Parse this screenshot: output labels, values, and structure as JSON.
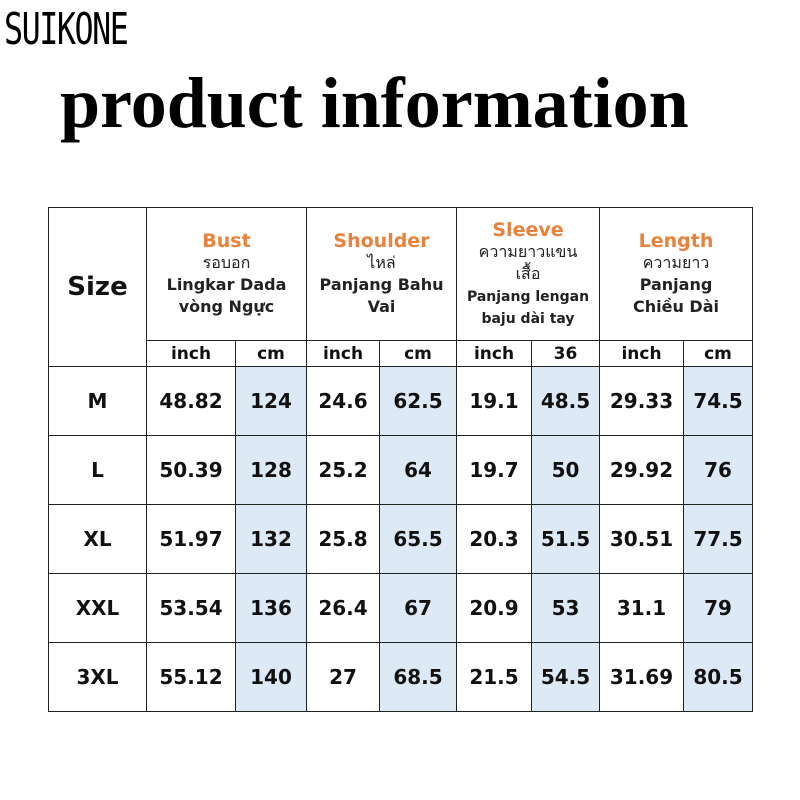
{
  "brand": "SUIKONE",
  "title": "product information",
  "table": {
    "size_label": "Size",
    "headers": [
      {
        "name": "Bust",
        "lines": [
          "รอบอก",
          "Lingkar Dada",
          "vòng Ngực"
        ]
      },
      {
        "name": "Shoulder",
        "lines": [
          "ไหล่",
          "Panjang Bahu",
          "Vai"
        ]
      },
      {
        "name": "Sleeve",
        "lines": [
          "ความยาวแขน",
          "เสื้อ",
          "Panjang lengan",
          "baju dài tay"
        ]
      },
      {
        "name": "Length",
        "lines": [
          "ความยาว",
          "Panjang",
          "Chiều Dài"
        ]
      }
    ],
    "units": [
      "inch",
      "cm",
      "inch",
      "cm",
      "inch",
      "36",
      "inch",
      "cm"
    ],
    "rows": [
      {
        "size": "M",
        "values": [
          "48.82",
          "124",
          "24.6",
          "62.5",
          "19.1",
          "48.5",
          "29.33",
          "74.5"
        ]
      },
      {
        "size": "L",
        "values": [
          "50.39",
          "128",
          "25.2",
          "64",
          "19.7",
          "50",
          "29.92",
          "76"
        ]
      },
      {
        "size": "XL",
        "values": [
          "51.97",
          "132",
          "25.8",
          "65.5",
          "20.3",
          "51.5",
          "30.51",
          "77.5"
        ]
      },
      {
        "size": "XXL",
        "values": [
          "53.54",
          "136",
          "26.4",
          "67",
          "20.9",
          "53",
          "31.1",
          "79"
        ]
      },
      {
        "size": "3XL",
        "values": [
          "55.12",
          "140",
          "27",
          "68.5",
          "21.5",
          "54.5",
          "31.69",
          "80.5"
        ]
      }
    ]
  },
  "colors": {
    "accent": "#e8823c",
    "cm_column": "#dde9f5"
  }
}
